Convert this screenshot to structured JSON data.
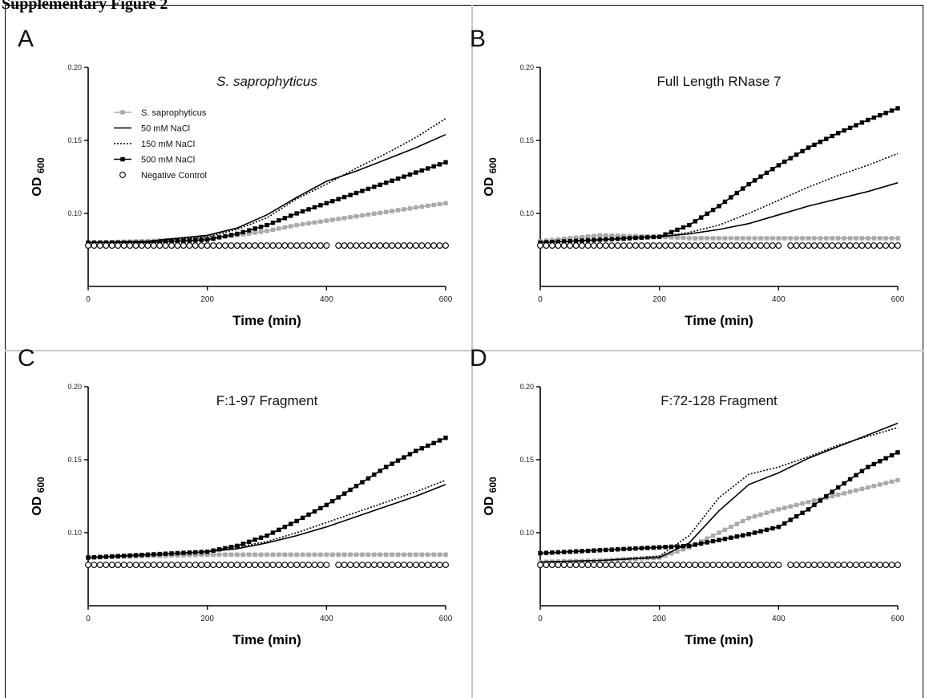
{
  "header_text": "Supplementary Figure 2",
  "colors": {
    "control": "#aaaaaa",
    "line": "#000000",
    "divider": "#c8c8c8"
  },
  "chart_data": [
    {
      "type": "line",
      "panel": "A",
      "title": "S. saprophyticus",
      "title_italic": true,
      "xlabel": "Time (min)",
      "ylabel": "OD",
      "ylabel_sub": "600",
      "xlim": [
        0,
        600
      ],
      "ylim": [
        0.05,
        0.2
      ],
      "xticks": [
        0,
        200,
        400,
        600
      ],
      "yticks": [
        "0.10",
        "0.15",
        "0.20"
      ],
      "legend": [
        "S. saprophyticus",
        "50 mM NaCl",
        "150 mM NaCl",
        "500 mM NaCl",
        "Negative Control"
      ],
      "legend_position": "top-left",
      "x": [
        0,
        100,
        200,
        250,
        300,
        350,
        400,
        450,
        500,
        550,
        600
      ],
      "series": [
        {
          "name": "S. saprophyticus",
          "style": "gray-square",
          "values": [
            0.08,
            0.081,
            0.083,
            0.085,
            0.088,
            0.092,
            0.095,
            0.098,
            0.101,
            0.104,
            0.107
          ]
        },
        {
          "name": "50 mM NaCl",
          "style": "solid",
          "values": [
            0.08,
            0.081,
            0.085,
            0.09,
            0.099,
            0.111,
            0.122,
            0.129,
            0.137,
            0.145,
            0.154
          ]
        },
        {
          "name": "150 mM NaCl",
          "style": "dotted",
          "values": [
            0.08,
            0.081,
            0.084,
            0.089,
            0.097,
            0.11,
            0.12,
            0.131,
            0.141,
            0.152,
            0.165
          ]
        },
        {
          "name": "500 mM NaCl",
          "style": "black-square",
          "values": [
            0.08,
            0.08,
            0.082,
            0.086,
            0.092,
            0.1,
            0.107,
            0.114,
            0.121,
            0.128,
            0.135
          ]
        },
        {
          "name": "Negative Control",
          "style": "open-circle",
          "values": [
            0.078,
            0.078,
            0.078,
            0.078,
            0.078,
            0.078,
            0.078,
            0.078,
            0.078,
            0.078,
            0.078
          ]
        }
      ]
    },
    {
      "type": "line",
      "panel": "B",
      "title": "Full Length RNase 7",
      "title_italic": false,
      "xlabel": "Time (min)",
      "ylabel": "OD",
      "ylabel_sub": "600",
      "xlim": [
        0,
        600
      ],
      "ylim": [
        0.05,
        0.2
      ],
      "xticks": [
        0,
        200,
        400,
        600
      ],
      "yticks": [
        "0.10",
        "0.15",
        "0.20"
      ],
      "x": [
        0,
        100,
        200,
        250,
        300,
        350,
        400,
        450,
        500,
        550,
        600
      ],
      "series": [
        {
          "name": "S. saprophyticus",
          "style": "gray-square",
          "values": [
            0.081,
            0.085,
            0.084,
            0.083,
            0.083,
            0.083,
            0.083,
            0.083,
            0.083,
            0.083,
            0.083
          ]
        },
        {
          "name": "50 mM NaCl",
          "style": "solid",
          "values": [
            0.08,
            0.082,
            0.084,
            0.086,
            0.089,
            0.093,
            0.099,
            0.105,
            0.11,
            0.115,
            0.121
          ]
        },
        {
          "name": "150 mM NaCl",
          "style": "dotted",
          "values": [
            0.08,
            0.082,
            0.084,
            0.087,
            0.092,
            0.1,
            0.109,
            0.118,
            0.126,
            0.133,
            0.141
          ]
        },
        {
          "name": "500 mM NaCl",
          "style": "black-square",
          "values": [
            0.08,
            0.082,
            0.084,
            0.092,
            0.105,
            0.12,
            0.133,
            0.145,
            0.155,
            0.164,
            0.172
          ]
        },
        {
          "name": "Negative Control",
          "style": "open-circle",
          "values": [
            0.078,
            0.078,
            0.078,
            0.078,
            0.078,
            0.078,
            0.078,
            0.078,
            0.078,
            0.078,
            0.078
          ]
        }
      ]
    },
    {
      "type": "line",
      "panel": "C",
      "title": "F:1-97 Fragment",
      "title_italic": false,
      "xlabel": "Time (min)",
      "ylabel": "OD",
      "ylabel_sub": "600",
      "xlim": [
        0,
        600
      ],
      "ylim": [
        0.05,
        0.2
      ],
      "xticks": [
        0,
        200,
        400,
        600
      ],
      "yticks": [
        "0.10",
        "0.15",
        "0.20"
      ],
      "x": [
        0,
        100,
        200,
        250,
        300,
        350,
        400,
        450,
        500,
        550,
        600
      ],
      "series": [
        {
          "name": "S. saprophyticus",
          "style": "gray-square",
          "values": [
            0.083,
            0.084,
            0.085,
            0.085,
            0.085,
            0.085,
            0.085,
            0.085,
            0.085,
            0.085,
            0.085
          ]
        },
        {
          "name": "50 mM NaCl",
          "style": "solid",
          "values": [
            0.083,
            0.085,
            0.087,
            0.089,
            0.093,
            0.098,
            0.104,
            0.111,
            0.118,
            0.125,
            0.133
          ]
        },
        {
          "name": "150 mM NaCl",
          "style": "dotted",
          "values": [
            0.083,
            0.085,
            0.087,
            0.09,
            0.094,
            0.1,
            0.107,
            0.114,
            0.121,
            0.128,
            0.136
          ]
        },
        {
          "name": "500 mM NaCl",
          "style": "black-square",
          "values": [
            0.083,
            0.085,
            0.087,
            0.091,
            0.098,
            0.108,
            0.119,
            0.132,
            0.145,
            0.156,
            0.165
          ]
        },
        {
          "name": "Negative Control",
          "style": "open-circle",
          "values": [
            0.078,
            0.078,
            0.078,
            0.078,
            0.078,
            0.078,
            0.078,
            0.078,
            0.078,
            0.078,
            0.078
          ]
        }
      ]
    },
    {
      "type": "line",
      "panel": "D",
      "title": "F:72-128 Fragment",
      "title_italic": false,
      "xlabel": "Time (min)",
      "ylabel": "OD",
      "ylabel_sub": "600",
      "xlim": [
        0,
        600
      ],
      "ylim": [
        0.05,
        0.2
      ],
      "xticks": [
        0,
        200,
        400,
        600
      ],
      "yticks": [
        "0.10",
        "0.15",
        "0.20"
      ],
      "x": [
        0,
        100,
        200,
        250,
        300,
        350,
        400,
        450,
        500,
        550,
        600
      ],
      "series": [
        {
          "name": "S. saprophyticus",
          "style": "gray-square",
          "values": [
            0.08,
            0.081,
            0.083,
            0.09,
            0.1,
            0.11,
            0.116,
            0.121,
            0.126,
            0.131,
            0.136
          ]
        },
        {
          "name": "50 mM NaCl",
          "style": "solid",
          "values": [
            0.08,
            0.081,
            0.083,
            0.093,
            0.115,
            0.133,
            0.141,
            0.151,
            0.159,
            0.167,
            0.175
          ]
        },
        {
          "name": "150 mM NaCl",
          "style": "dotted",
          "values": [
            0.08,
            0.081,
            0.084,
            0.098,
            0.124,
            0.14,
            0.145,
            0.152,
            0.16,
            0.166,
            0.172
          ]
        },
        {
          "name": "500 mM NaCl",
          "style": "black-square",
          "values": [
            0.086,
            0.088,
            0.09,
            0.091,
            0.095,
            0.099,
            0.104,
            0.116,
            0.131,
            0.145,
            0.155
          ]
        },
        {
          "name": "Negative Control",
          "style": "open-circle",
          "values": [
            0.078,
            0.078,
            0.078,
            0.078,
            0.078,
            0.078,
            0.078,
            0.078,
            0.078,
            0.078,
            0.078
          ]
        }
      ]
    }
  ]
}
